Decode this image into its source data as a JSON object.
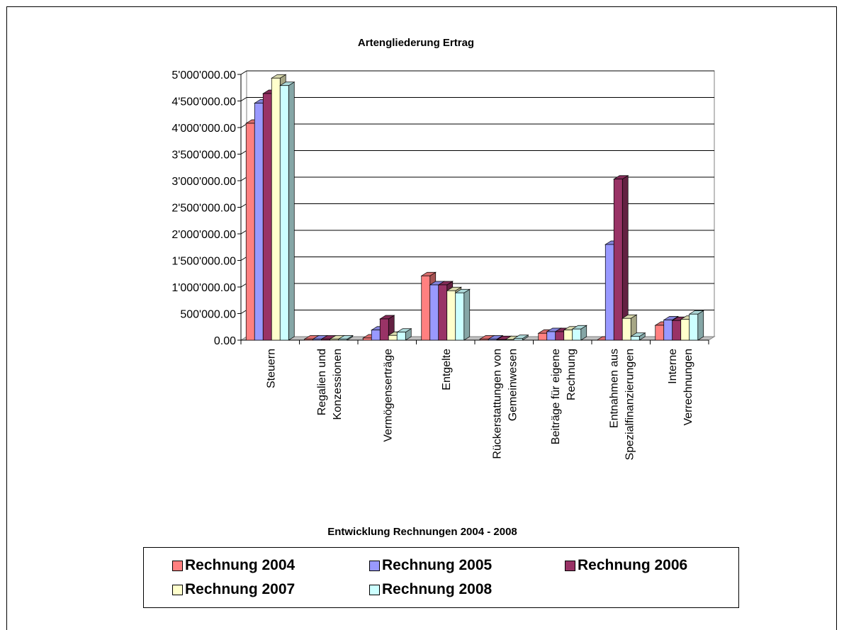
{
  "chart_data": {
    "type": "bar",
    "title": "Artengliederung Ertrag",
    "xlabel": "Entwicklung Rechnungen 2004 - 2008",
    "ylabel": "",
    "ylim": [
      0,
      5000000
    ],
    "yticks": [
      "0.00",
      "500'000.00",
      "1'000'000.00",
      "1'500'000.00",
      "2'000'000.00",
      "2'500'000.00",
      "3'000'000.00",
      "3'500'000.00",
      "4'000'000.00",
      "4'500'000.00",
      "5'000'000.00"
    ],
    "categories": [
      [
        "Steuern"
      ],
      [
        "Regalien und",
        "Konzessionen"
      ],
      [
        "Vermögenserträge"
      ],
      [
        "Entgelte"
      ],
      [
        "Rückerstattungen von",
        "Gemeinwesen"
      ],
      [
        "Beiträge für eigene",
        "Rechnung"
      ],
      [
        "Entnahmen aus",
        "Spezialfinanzierungen"
      ],
      [
        "Interne",
        "Verrechnungen"
      ]
    ],
    "series": [
      {
        "name": "Rechnung 2004",
        "color": "#ff8080",
        "values": [
          4080000,
          20000,
          40000,
          1210000,
          20000,
          130000,
          0,
          280000
        ]
      },
      {
        "name": "Rechnung 2005",
        "color": "#9999ff",
        "values": [
          4460000,
          20000,
          190000,
          1040000,
          20000,
          160000,
          1800000,
          380000
        ]
      },
      {
        "name": "Rechnung 2006",
        "color": "#993366",
        "values": [
          4640000,
          20000,
          400000,
          1040000,
          10000,
          160000,
          3030000,
          370000
        ]
      },
      {
        "name": "Rechnung 2007",
        "color": "#ffffcc",
        "values": [
          4930000,
          20000,
          90000,
          930000,
          10000,
          190000,
          410000,
          390000
        ]
      },
      {
        "name": "Rechnung 2008",
        "color": "#ccffff",
        "values": [
          4790000,
          20000,
          150000,
          890000,
          30000,
          210000,
          70000,
          490000
        ]
      }
    ],
    "grid": true,
    "legend_position": "bottom"
  }
}
